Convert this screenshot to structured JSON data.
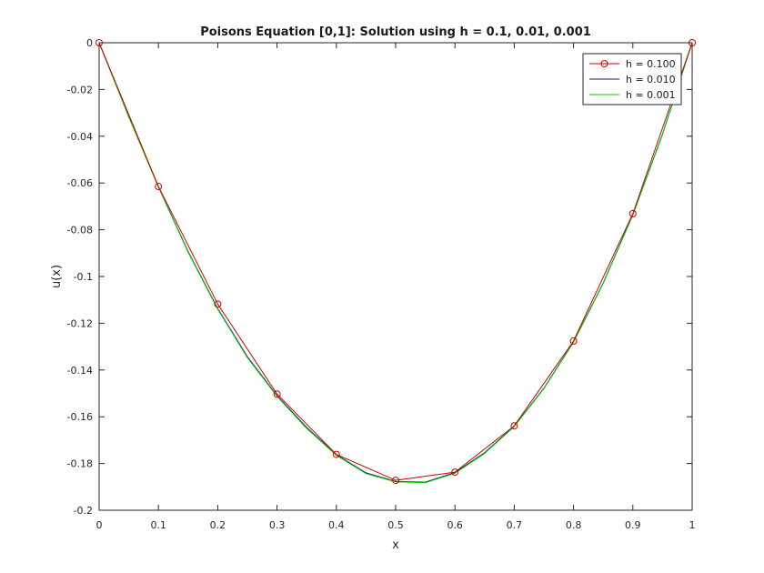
{
  "chart_data": {
    "type": "line",
    "title": "Poisons Equation [0,1]: Solution using h = 0.1, 0.01, 0.001",
    "xlabel": "x",
    "ylabel": "u(x)",
    "xlim": [
      0,
      1
    ],
    "ylim": [
      -0.2,
      0
    ],
    "xticks": [
      0,
      0.1,
      0.2,
      0.3,
      0.4,
      0.5,
      0.6,
      0.7,
      0.8,
      0.9,
      1
    ],
    "xtick_labels": [
      "0",
      "0.1",
      "0.2",
      "0.3",
      "0.4",
      "0.5",
      "0.6",
      "0.7",
      "0.8",
      "0.9",
      "1"
    ],
    "yticks": [
      0,
      -0.02,
      -0.04,
      -0.06,
      -0.08,
      -0.1,
      -0.12,
      -0.14,
      -0.16,
      -0.18,
      -0.2
    ],
    "ytick_labels": [
      "0",
      "-0.02",
      "-0.04",
      "-0.06",
      "-0.08",
      "-0.1",
      "-0.12",
      "-0.14",
      "-0.16",
      "-0.18",
      "-0.2"
    ],
    "grid": false,
    "legend_position": "top-right",
    "series": [
      {
        "name": "h = 0.100",
        "color": "#cc0000",
        "marker": "circle",
        "x": [
          0,
          0.1,
          0.2,
          0.3,
          0.4,
          0.5,
          0.6,
          0.7,
          0.8,
          0.9,
          1.0
        ],
        "y": [
          0,
          -0.0615,
          -0.1118,
          -0.1503,
          -0.1761,
          -0.1872,
          -0.1837,
          -0.1639,
          -0.1276,
          -0.0731,
          0
        ]
      },
      {
        "name": "h = 0.010",
        "color": "#0a1a7a",
        "marker": "none",
        "x": [
          0,
          0.05,
          0.1,
          0.15,
          0.2,
          0.25,
          0.3,
          0.35,
          0.4,
          0.45,
          0.5,
          0.55,
          0.6,
          0.65,
          0.7,
          0.75,
          0.8,
          0.85,
          0.9,
          0.95,
          1.0
        ],
        "y": [
          0,
          -0.0316,
          -0.0616,
          -0.0893,
          -0.1137,
          -0.1343,
          -0.151,
          -0.1646,
          -0.1762,
          -0.184,
          -0.1877,
          -0.188,
          -0.1839,
          -0.1754,
          -0.164,
          -0.1478,
          -0.1279,
          -0.1028,
          -0.0735,
          -0.0391,
          0
        ]
      },
      {
        "name": "h = 0.001",
        "color": "#00cc00",
        "marker": "none",
        "x": [
          0,
          0.05,
          0.1,
          0.15,
          0.2,
          0.25,
          0.3,
          0.35,
          0.4,
          0.45,
          0.5,
          0.55,
          0.6,
          0.65,
          0.7,
          0.75,
          0.8,
          0.85,
          0.9,
          0.95,
          1.0
        ],
        "y": [
          0,
          -0.0318,
          -0.0618,
          -0.0896,
          -0.114,
          -0.1347,
          -0.1513,
          -0.165,
          -0.1765,
          -0.1843,
          -0.1879,
          -0.1882,
          -0.1842,
          -0.1757,
          -0.1642,
          -0.148,
          -0.1281,
          -0.103,
          -0.0737,
          -0.0393,
          0
        ]
      }
    ]
  }
}
